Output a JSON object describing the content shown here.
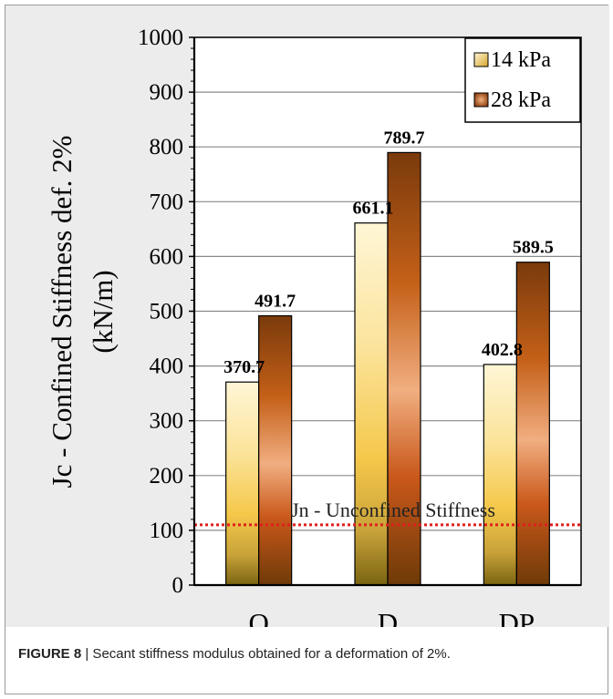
{
  "chart_data": {
    "type": "bar",
    "categories": [
      "O",
      "D",
      "DP"
    ],
    "series": [
      {
        "name": "14 kPa",
        "values": [
          370.7,
          661.1,
          402.8
        ],
        "labels": [
          "370.7",
          "661.1",
          "402.8"
        ]
      },
      {
        "name": "28 kPa",
        "values": [
          491.7,
          789.7,
          589.5
        ],
        "labels": [
          "491.7",
          "789.7",
          "589.5"
        ]
      }
    ],
    "ylabel_line1": "Jc - Confined Stiffness def. 2%",
    "ylabel_line2": "(kN/m)",
    "ylim": [
      0,
      1000
    ],
    "yticks": [
      0,
      100,
      200,
      300,
      400,
      500,
      600,
      700,
      800,
      900,
      1000
    ],
    "grid": true,
    "legend_position": "top-right",
    "reference_line": {
      "value": 110,
      "label": "Jn - Unconfined Stiffness",
      "color": "#e0201c"
    },
    "colors": {
      "series1": "#f7c948",
      "series2": "#c05a14"
    }
  },
  "caption": {
    "label": "FIGURE 8",
    "separator": "|",
    "text": " Secant stiffness modulus obtained for a deformation of 2%."
  }
}
